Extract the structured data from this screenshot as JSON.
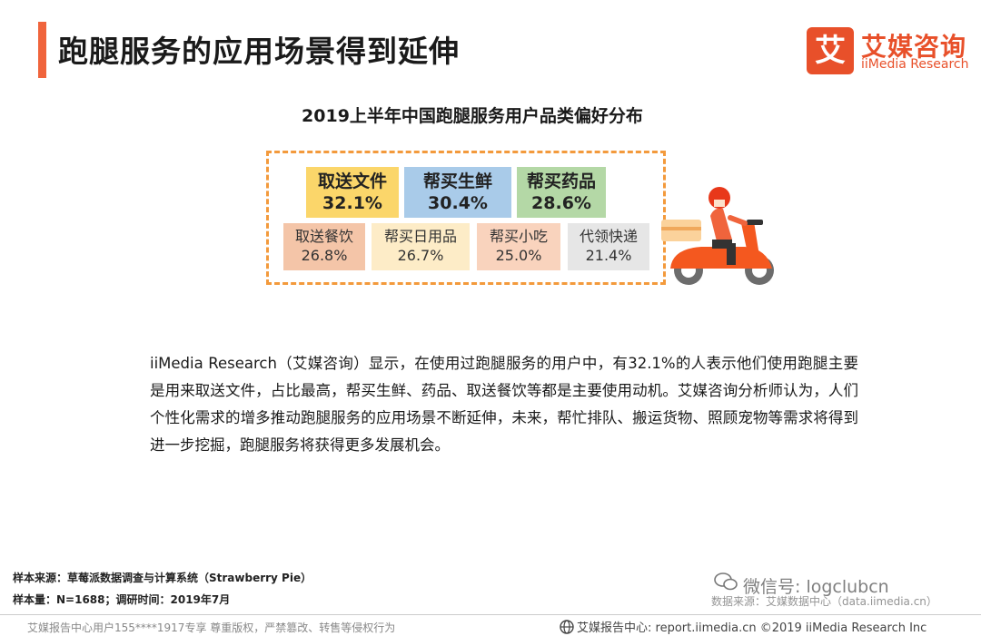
{
  "header": {
    "title": "跑腿服务的应用场景得到延伸",
    "logo_mark": "艾",
    "logo_cn": "艾媒咨询",
    "logo_en": "iiMedia Research"
  },
  "chart_title": "2019上半年中国跑腿服务用户品类偏好分布",
  "chart_data": {
    "type": "table",
    "title": "2019上半年中国跑腿服务用户品类偏好分布",
    "categories": [
      "取送文件",
      "帮买生鲜",
      "帮买药品",
      "取送餐饮",
      "帮买日用品",
      "帮买小吃",
      "代领快递"
    ],
    "values": [
      32.1,
      30.4,
      28.6,
      26.8,
      26.7,
      25.0,
      21.4
    ],
    "value_labels": [
      "32.1%",
      "30.4%",
      "28.6%",
      "26.8%",
      "26.7%",
      "25.0%",
      "21.4%"
    ],
    "colors": [
      "#fbd66a",
      "#a9cbe9",
      "#b4d8a6",
      "#f4c5a8",
      "#fdecc7",
      "#f9d3bd",
      "#e6e6e6"
    ]
  },
  "body": {
    "paragraph": "iiMedia Research（艾媒咨询）显示，在使用过跑腿服务的用户中，有32.1%的人表示他们使用跑腿主要是用来取送文件，占比最高，帮买生鲜、药品、取送餐饮等都是主要使用动机。艾媒咨询分析师认为，人们个性化需求的增多推动跑腿服务的应用场景不断延伸，未来，帮忙排队、搬运货物、照顾宠物等需求将得到进一步挖掘，跑腿服务将获得更多发展机会。"
  },
  "notes": {
    "source": "样本来源：草莓派数据调查与计算系统（Strawberry Pie）",
    "sample": "样本量：N=1688；调研时间：2019年7月",
    "data_source": "数据来源：艾媒数据中心（data.iimedia.cn）",
    "watermark": "微信号: logclubcn"
  },
  "footer": {
    "left": "艾媒报告中心用户155****1917专享 尊重版权，严禁篡改、转售等侵权行为",
    "right": "艾媒报告中心: report.iimedia.cn  ©2019  iiMedia Research  Inc"
  }
}
